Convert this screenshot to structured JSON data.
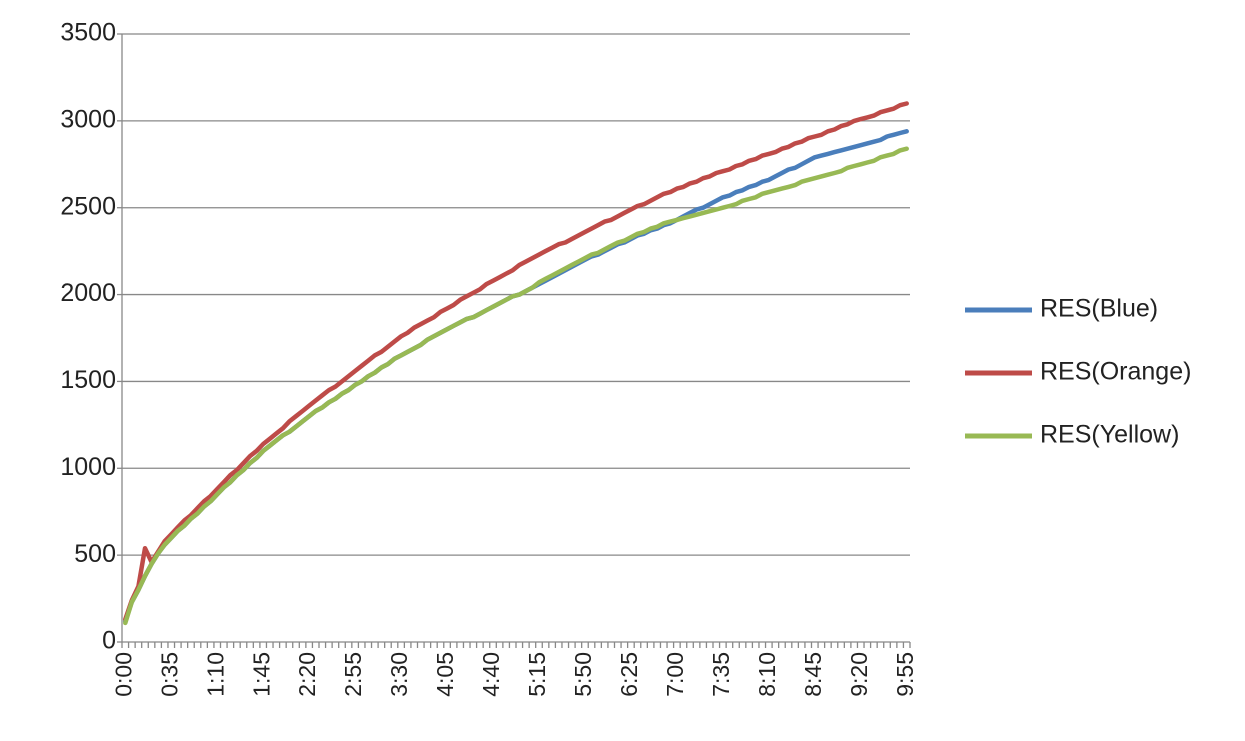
{
  "chart_data": {
    "type": "line",
    "categories": [
      "0:00",
      null,
      null,
      null,
      null,
      null,
      null,
      "0:35",
      null,
      null,
      null,
      null,
      null,
      null,
      "1:10",
      null,
      null,
      null,
      null,
      null,
      null,
      "1:45",
      null,
      null,
      null,
      null,
      null,
      null,
      "2:20",
      null,
      null,
      null,
      null,
      null,
      null,
      "2:55",
      null,
      null,
      null,
      null,
      null,
      null,
      "3:30",
      null,
      null,
      null,
      null,
      null,
      null,
      "4:05",
      null,
      null,
      null,
      null,
      null,
      null,
      "4:40",
      null,
      null,
      null,
      null,
      null,
      null,
      "5:15",
      null,
      null,
      null,
      null,
      null,
      null,
      "5:50",
      null,
      null,
      null,
      null,
      null,
      null,
      "6:25",
      null,
      null,
      null,
      null,
      null,
      null,
      "7:00",
      null,
      null,
      null,
      null,
      null,
      null,
      "7:35",
      null,
      null,
      null,
      null,
      null,
      null,
      "8:10",
      null,
      null,
      null,
      null,
      null,
      null,
      "8:45",
      null,
      null,
      null,
      null,
      null,
      null,
      "9:20",
      null,
      null,
      null,
      null,
      null,
      null,
      "9:55"
    ],
    "series": [
      {
        "name": "RES(Blue)",
        "color": "#4a7ebb",
        "values": [
          120,
          230,
          300,
          380,
          450,
          510,
          560,
          600,
          640,
          670,
          710,
          740,
          780,
          810,
          850,
          890,
          920,
          960,
          990,
          1030,
          1060,
          1100,
          1130,
          1160,
          1190,
          1210,
          1240,
          1270,
          1300,
          1330,
          1350,
          1380,
          1400,
          1430,
          1450,
          1480,
          1500,
          1530,
          1550,
          1580,
          1600,
          1630,
          1650,
          1670,
          1690,
          1710,
          1740,
          1760,
          1780,
          1800,
          1820,
          1840,
          1860,
          1870,
          1890,
          1910,
          1930,
          1950,
          1970,
          1990,
          2000,
          2020,
          2040,
          2060,
          2080,
          2100,
          2120,
          2140,
          2160,
          2180,
          2200,
          2220,
          2230,
          2250,
          2270,
          2290,
          2300,
          2320,
          2340,
          2350,
          2370,
          2380,
          2400,
          2410,
          2430,
          2450,
          2470,
          2490,
          2500,
          2520,
          2540,
          2560,
          2570,
          2590,
          2600,
          2620,
          2630,
          2650,
          2660,
          2680,
          2700,
          2720,
          2730,
          2750,
          2770,
          2790,
          2800,
          2810,
          2820,
          2830,
          2840,
          2850,
          2860,
          2870,
          2880,
          2890,
          2910,
          2920,
          2930,
          2940
        ]
      },
      {
        "name": "RES(Orange)",
        "color": "#be4b48",
        "values": [
          130,
          240,
          320,
          540,
          460,
          520,
          580,
          620,
          660,
          700,
          730,
          770,
          810,
          840,
          880,
          920,
          960,
          990,
          1030,
          1070,
          1100,
          1140,
          1170,
          1200,
          1230,
          1270,
          1300,
          1330,
          1360,
          1390,
          1420,
          1450,
          1470,
          1500,
          1530,
          1560,
          1590,
          1620,
          1650,
          1670,
          1700,
          1730,
          1760,
          1780,
          1810,
          1830,
          1850,
          1870,
          1900,
          1920,
          1940,
          1970,
          1990,
          2010,
          2030,
          2060,
          2080,
          2100,
          2120,
          2140,
          2170,
          2190,
          2210,
          2230,
          2250,
          2270,
          2290,
          2300,
          2320,
          2340,
          2360,
          2380,
          2400,
          2420,
          2430,
          2450,
          2470,
          2490,
          2510,
          2520,
          2540,
          2560,
          2580,
          2590,
          2610,
          2620,
          2640,
          2650,
          2670,
          2680,
          2700,
          2710,
          2720,
          2740,
          2750,
          2770,
          2780,
          2800,
          2810,
          2820,
          2840,
          2850,
          2870,
          2880,
          2900,
          2910,
          2920,
          2940,
          2950,
          2970,
          2980,
          3000,
          3010,
          3020,
          3030,
          3050,
          3060,
          3070,
          3090,
          3100
        ]
      },
      {
        "name": "RES(Yellow)",
        "color": "#98b954",
        "values": [
          110,
          230,
          300,
          380,
          450,
          510,
          560,
          600,
          640,
          670,
          710,
          740,
          780,
          810,
          850,
          890,
          920,
          960,
          990,
          1030,
          1060,
          1100,
          1130,
          1160,
          1190,
          1210,
          1240,
          1270,
          1300,
          1330,
          1350,
          1380,
          1400,
          1430,
          1450,
          1480,
          1500,
          1530,
          1550,
          1580,
          1600,
          1630,
          1650,
          1670,
          1690,
          1710,
          1740,
          1760,
          1780,
          1800,
          1820,
          1840,
          1860,
          1870,
          1890,
          1910,
          1930,
          1950,
          1970,
          1990,
          2000,
          2020,
          2040,
          2070,
          2090,
          2110,
          2130,
          2150,
          2170,
          2190,
          2210,
          2230,
          2240,
          2260,
          2280,
          2300,
          2310,
          2330,
          2350,
          2360,
          2380,
          2390,
          2410,
          2420,
          2430,
          2440,
          2450,
          2460,
          2470,
          2480,
          2490,
          2500,
          2510,
          2520,
          2540,
          2550,
          2560,
          2580,
          2590,
          2600,
          2610,
          2620,
          2630,
          2650,
          2660,
          2670,
          2680,
          2690,
          2700,
          2710,
          2730,
          2740,
          2750,
          2760,
          2770,
          2790,
          2800,
          2810,
          2830,
          2840
        ]
      }
    ],
    "ylim": [
      0,
      3500
    ],
    "yticks": [
      0,
      500,
      1000,
      1500,
      2000,
      2500,
      3000,
      3500
    ],
    "grid": true,
    "legend": "right"
  }
}
